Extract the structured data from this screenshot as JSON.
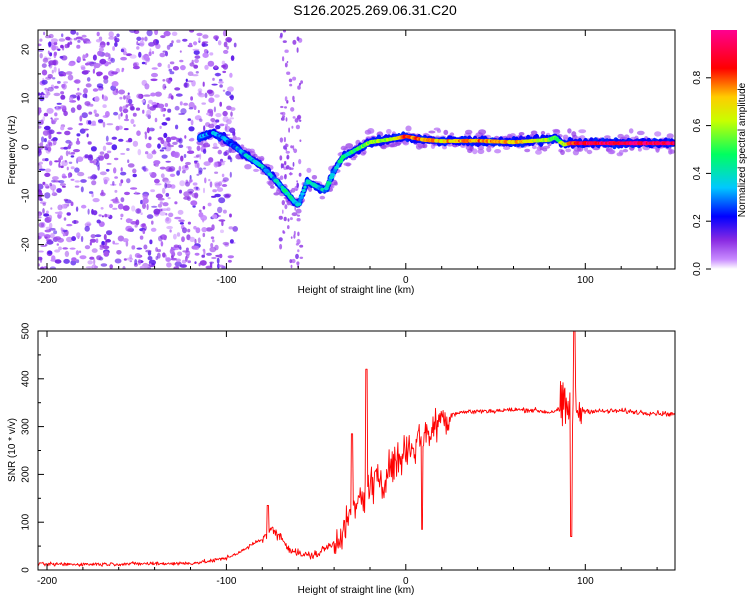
{
  "title": "S126.2025.269.06.31.C20",
  "chart_data": [
    {
      "type": "heatmap",
      "title": "S126.2025.269.06.31.C20",
      "xlabel": "Height of straight line (km)",
      "ylabel": "Frequency (Hz)",
      "xlim": [
        -205,
        150
      ],
      "ylim": [
        -25,
        24
      ],
      "xticks": [
        -200,
        -100,
        0,
        100
      ],
      "yticks": [
        -20,
        -10,
        0,
        10,
        20
      ],
      "colorbar": {
        "label": "Normalized spectral amplitude",
        "range": [
          0,
          1
        ],
        "ticks": [
          "0.0",
          "0.2",
          "0.4",
          "0.6",
          "0.8"
        ],
        "tick_values": [
          0,
          0.2,
          0.4,
          0.6,
          0.8
        ],
        "stops": [
          "#ffffff",
          "#9b30ff",
          "#0000ff",
          "#00e5ff",
          "#00ff40",
          "#ffff00",
          "#ff0000",
          "#ff00a0"
        ]
      },
      "ridge": {
        "x": [
          -115,
          -108,
          -102,
          -95,
          -88,
          -80,
          -72,
          -65,
          -60,
          -55,
          -50,
          -45,
          -40,
          -35,
          -30,
          -25,
          -20,
          -10,
          -5,
          0,
          10,
          20,
          40,
          60,
          80,
          83,
          88,
          92,
          100,
          120,
          150
        ],
        "y": [
          2,
          3,
          2,
          0,
          -2,
          -4,
          -7,
          -10,
          -12,
          -7,
          -8,
          -9,
          -5,
          -2,
          -1,
          0,
          1,
          1.5,
          1.8,
          2.2,
          1.5,
          1.2,
          1.3,
          1,
          1.5,
          2,
          0.5,
          0.8,
          0.8,
          0.8,
          0.8
        ],
        "amplitude": [
          0.25,
          0.3,
          0.3,
          0.3,
          0.35,
          0.35,
          0.35,
          0.4,
          0.35,
          0.4,
          0.35,
          0.35,
          0.35,
          0.4,
          0.45,
          0.5,
          0.55,
          0.6,
          0.7,
          0.8,
          0.75,
          0.7,
          0.75,
          0.7,
          0.6,
          0.55,
          0.55,
          0.85,
          0.9,
          0.95,
          0.95
        ]
      },
      "noise_region_x": [
        -205,
        -110
      ],
      "noise_amplitude": 0.15
    },
    {
      "type": "line",
      "xlabel": "Height of straight line (km)",
      "ylabel": "SNR (10 * v/v)",
      "xlim": [
        -205,
        150
      ],
      "ylim": [
        0,
        500
      ],
      "xticks": [
        -200,
        -100,
        0,
        100
      ],
      "yticks": [
        0,
        100,
        200,
        300,
        400,
        500
      ],
      "color": "#ff0000",
      "series": [
        {
          "name": "SNR",
          "x": [
            -205,
            -180,
            -150,
            -120,
            -110,
            -100,
            -90,
            -85,
            -80,
            -75,
            -70,
            -65,
            -60,
            -55,
            -50,
            -45,
            -40,
            -35,
            -30,
            -25,
            -20,
            -15,
            -10,
            -5,
            0,
            5,
            10,
            15,
            20,
            25,
            30,
            40,
            50,
            60,
            70,
            80,
            85,
            90,
            92,
            94,
            96,
            98,
            100,
            110,
            120,
            130,
            140,
            150
          ],
          "y": [
            12,
            12,
            13,
            14,
            18,
            25,
            42,
            55,
            65,
            85,
            70,
            45,
            35,
            30,
            32,
            45,
            55,
            80,
            110,
            150,
            175,
            190,
            210,
            230,
            255,
            265,
            280,
            300,
            315,
            325,
            330,
            332,
            333,
            335,
            335,
            330,
            335,
            335,
            330,
            335,
            335,
            335,
            333,
            332,
            333,
            330,
            328,
            326
          ]
        }
      ],
      "spikes": [
        {
          "x": -77,
          "y": 135
        },
        {
          "x": -30,
          "y": 285
        },
        {
          "x": -22,
          "y": 420
        },
        {
          "x": 9,
          "y": 85
        },
        {
          "x": 94,
          "y": 500
        },
        {
          "x": 92,
          "y": 70
        }
      ]
    }
  ]
}
